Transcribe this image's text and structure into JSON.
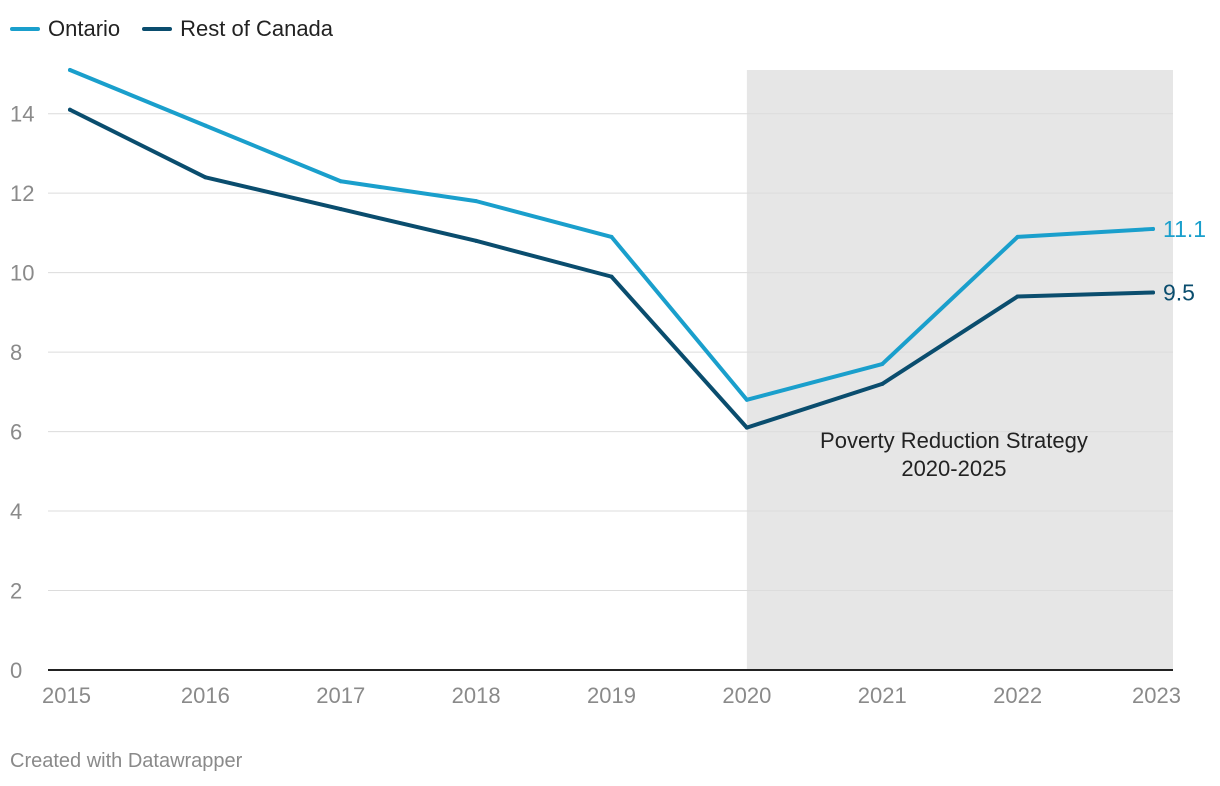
{
  "chart_data": {
    "type": "line",
    "title": "",
    "xlabel": "",
    "ylabel": "",
    "x": [
      2015,
      2016,
      2017,
      2018,
      2019,
      2020,
      2021,
      2022,
      2023
    ],
    "x_tick_labels": [
      "2015",
      "2016",
      "2017",
      "2018",
      "2019",
      "2020",
      "2021",
      "2022",
      "2023"
    ],
    "y_ticks": [
      0,
      2,
      4,
      6,
      8,
      10,
      12,
      14
    ],
    "y_tick_labels": [
      "0",
      "2",
      "4",
      "6",
      "8",
      "10",
      "12",
      "14"
    ],
    "ylim": [
      0,
      15.1
    ],
    "grid": true,
    "legend_position": "top-left",
    "series": [
      {
        "name": "Ontario",
        "color": "#1a9fcc",
        "values": [
          15.1,
          13.7,
          12.3,
          11.8,
          10.9,
          6.8,
          7.7,
          10.9,
          11.1
        ],
        "end_label": "11.1"
      },
      {
        "name": "Rest of Canada",
        "color": "#0a4d6e",
        "values": [
          14.1,
          12.4,
          11.6,
          10.8,
          9.9,
          6.1,
          7.2,
          9.4,
          9.5
        ],
        "end_label": "9.5"
      }
    ],
    "highlight_range": {
      "x_start": 2020,
      "x_end": 2023.2,
      "label_line1": "Poverty Reduction Strategy",
      "label_line2": "2020-2025",
      "color": "#e6e6e6"
    }
  },
  "footer": "Created with Datawrapper"
}
